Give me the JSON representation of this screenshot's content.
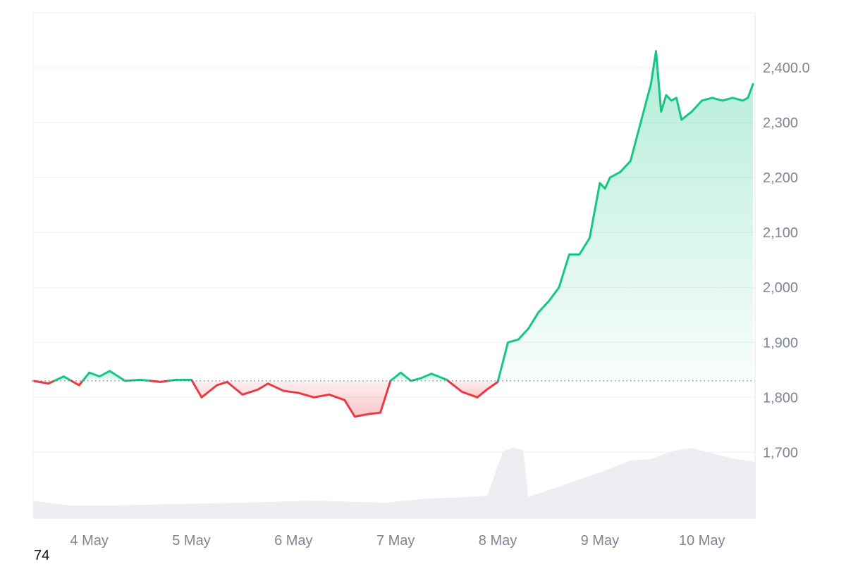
{
  "chart_data": {
    "type": "line",
    "baseline": 1830,
    "ylim": [
      1580,
      2500
    ],
    "xlim": [
      3.45,
      10.52
    ],
    "y_ticks": [
      1700,
      1800,
      1900,
      2000,
      2100,
      2200,
      2300,
      2400
    ],
    "y_tick_labels": [
      "1,700",
      "1,800",
      "1,900",
      "2,000",
      "2,100",
      "2,200",
      "2,300",
      "2,400.0"
    ],
    "x_ticks": [
      4,
      5,
      6,
      7,
      8,
      9,
      10
    ],
    "x_tick_labels": [
      "4 May",
      "5 May",
      "6 May",
      "7 May",
      "8 May",
      "9 May",
      "10 May"
    ],
    "series": [
      {
        "x": [
          3.45,
          3.6,
          3.75,
          3.9,
          4.0,
          4.1,
          4.2,
          4.35,
          4.5,
          4.7,
          4.85,
          5.0,
          5.1,
          5.25,
          5.35,
          5.5,
          5.65,
          5.75,
          5.9,
          6.05,
          6.2,
          6.35,
          6.5,
          6.6,
          6.75,
          6.85,
          6.95,
          7.05,
          7.15,
          7.25,
          7.35,
          7.5,
          7.65,
          7.8,
          7.9,
          8.0,
          8.1,
          8.2,
          8.3,
          8.35,
          8.4,
          8.5,
          8.6,
          8.7,
          8.8,
          8.9,
          9.0,
          9.05,
          9.1,
          9.2,
          9.3,
          9.4,
          9.5,
          9.55,
          9.6,
          9.65,
          9.7,
          9.75,
          9.8,
          9.9,
          10.0,
          10.1,
          10.2,
          10.3,
          10.4,
          10.45,
          10.5
        ],
        "y": [
          1830,
          1825,
          1838,
          1822,
          1845,
          1838,
          1848,
          1830,
          1832,
          1828,
          1832,
          1832,
          1800,
          1822,
          1828,
          1805,
          1814,
          1825,
          1812,
          1808,
          1800,
          1805,
          1795,
          1765,
          1770,
          1772,
          1830,
          1845,
          1830,
          1835,
          1843,
          1832,
          1810,
          1800,
          1815,
          1828,
          1900,
          1905,
          1925,
          1940,
          1955,
          1975,
          2000,
          2060,
          2060,
          2090,
          2190,
          2180,
          2200,
          2210,
          2230,
          2300,
          2370,
          2430,
          2320,
          2350,
          2340,
          2345,
          2305,
          2320,
          2340,
          2345,
          2340,
          2345,
          2340,
          2345,
          2370
        ]
      }
    ],
    "volume": {
      "x": [
        3.45,
        3.8,
        4.2,
        4.8,
        5.5,
        6.2,
        6.9,
        7.3,
        7.7,
        7.9,
        8.05,
        8.15,
        8.25,
        8.3,
        8.5,
        8.8,
        9.0,
        9.3,
        9.5,
        9.7,
        9.9,
        10.1,
        10.3,
        10.52
      ],
      "level": [
        0.25,
        0.18,
        0.18,
        0.2,
        0.22,
        0.25,
        0.22,
        0.28,
        0.3,
        0.32,
        0.95,
        1.0,
        0.97,
        0.3,
        0.4,
        0.55,
        0.65,
        0.82,
        0.84,
        0.95,
        1.0,
        0.92,
        0.85,
        0.8
      ]
    },
    "colors": {
      "up": "#16c784",
      "down": "#ea3943",
      "up_fill": "#16c784",
      "down_fill": "#ea3943",
      "volume": "#eceef2"
    }
  },
  "footer": {
    "label": "74"
  }
}
